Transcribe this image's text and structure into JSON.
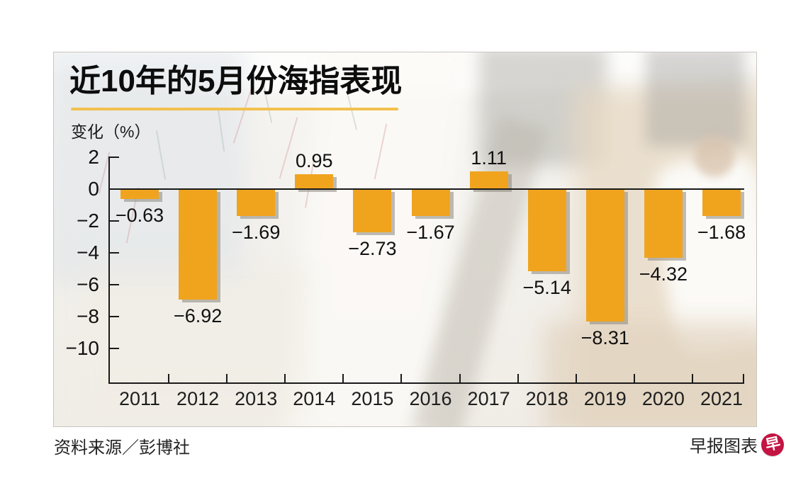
{
  "source": "资料来源／彭博社",
  "brand": {
    "label": "早报图表",
    "logo_glyph": "早"
  },
  "colors": {
    "bar": "#F0A41E",
    "bar_shadow": "rgba(138,134,126,0.55)",
    "accent_underline": "#F2C14E",
    "axis": "#1a1a1a",
    "logo_bg": "#C41442",
    "logo_glyph": "#ffffff"
  },
  "chart_data": {
    "type": "bar",
    "title": "近10年的5月份海指表现",
    "ylabel": "变化（%）",
    "categories": [
      "2011",
      "2012",
      "2013",
      "2014",
      "2015",
      "2016",
      "2017",
      "2018",
      "2019",
      "2020",
      "2021"
    ],
    "values": [
      -0.63,
      -6.92,
      -1.69,
      0.95,
      -2.73,
      -1.67,
      1.11,
      -5.14,
      -8.31,
      -4.32,
      -1.68
    ],
    "value_labels": [
      "−0.63",
      "−6.92",
      "−1.69",
      "0.95",
      "−2.73",
      "−1.67",
      "1.11",
      "−5.14",
      "−8.31",
      "−4.32",
      "−1.68"
    ],
    "yticks": [
      2,
      0,
      -2,
      -4,
      -6,
      -8,
      -10
    ],
    "ytick_labels": [
      "2",
      "0",
      "−2",
      "−4",
      "−6",
      "−8",
      "−10"
    ],
    "ylim": [
      -12.2,
      2
    ],
    "xlabel": "",
    "grid": false,
    "legend": null
  }
}
